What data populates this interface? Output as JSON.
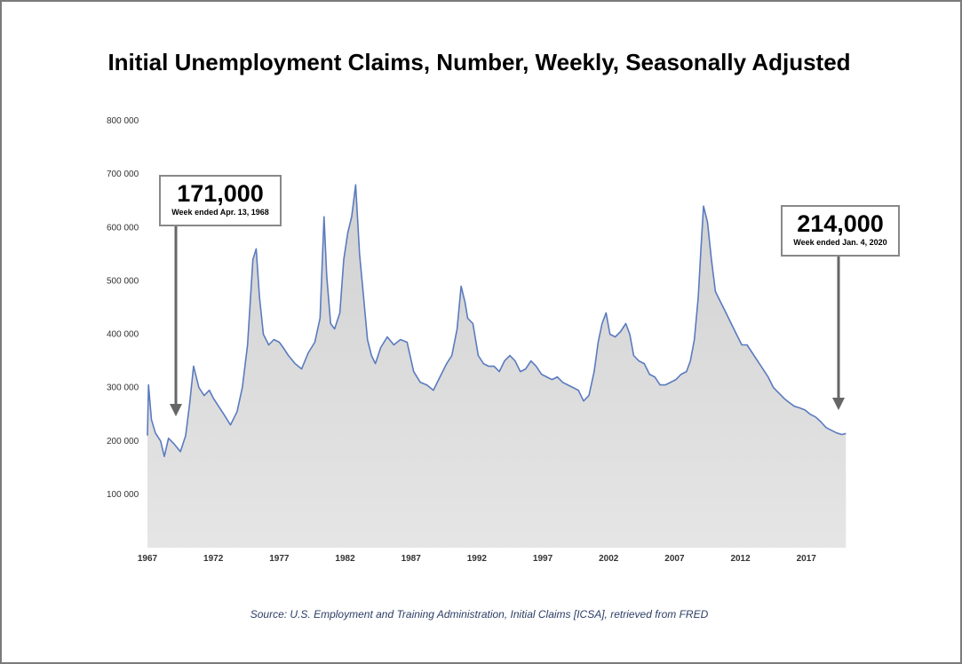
{
  "title": "Initial Unemployment Claims, Number, Weekly, Seasonally Adjusted",
  "source": "Source: U.S. Employment and Training Administration, Initial Claims [ICSA], retrieved from FRED",
  "callouts": [
    {
      "value": "171,000",
      "label": "Week ended Apr. 13, 1968"
    },
    {
      "value": "214,000",
      "label": "Week ended Jan. 4, 2020"
    }
  ],
  "colors": {
    "line": "#5a7bbf",
    "fill": "#d4d4d4",
    "border": "#7a7a7a",
    "arrow": "#666666"
  },
  "chart_data": {
    "type": "area",
    "title": "Initial Unemployment Claims, Number, Weekly, Seasonally Adjusted",
    "xlabel": "",
    "ylabel": "",
    "xlim": [
      1967.0,
      2020.05
    ],
    "ylim": [
      0,
      800000
    ],
    "yticks": [
      100000,
      200000,
      300000,
      400000,
      500000,
      600000,
      700000,
      800000
    ],
    "ytick_labels": [
      "100 000",
      "200 000",
      "300 000",
      "400 000",
      "500 000",
      "600 000",
      "700 000",
      "800 000"
    ],
    "xticks": [
      1967,
      1972,
      1977,
      1982,
      1987,
      1992,
      1997,
      2002,
      2007,
      2012,
      2017
    ],
    "xtick_labels": [
      "1967",
      "1972",
      "1977",
      "1982",
      "1987",
      "1992",
      "1997",
      "2002",
      "2007",
      "2012",
      "2017"
    ],
    "grid": false,
    "series": [
      {
        "x": [
          1967.0,
          1967.08,
          1967.3,
          1967.6,
          1968.0,
          1968.28,
          1968.6,
          1969.0,
          1969.5,
          1969.9,
          1970.2,
          1970.5,
          1970.9,
          1971.3,
          1971.7,
          1972.0,
          1972.4,
          1972.8,
          1973.3,
          1973.8,
          1974.2,
          1974.6,
          1975.0,
          1975.25,
          1975.5,
          1975.8,
          1976.2,
          1976.6,
          1977.0,
          1977.3,
          1977.7,
          1978.2,
          1978.7,
          1979.2,
          1979.7,
          1980.1,
          1980.4,
          1980.6,
          1980.9,
          1981.2,
          1981.6,
          1981.9,
          1982.2,
          1982.5,
          1982.8,
          1983.1,
          1983.4,
          1983.7,
          1984.0,
          1984.3,
          1984.7,
          1985.2,
          1985.7,
          1986.2,
          1986.7,
          1987.2,
          1987.7,
          1988.2,
          1988.7,
          1989.2,
          1989.7,
          1990.1,
          1990.5,
          1990.8,
          1991.1,
          1991.3,
          1991.7,
          1992.1,
          1992.5,
          1992.9,
          1993.3,
          1993.7,
          1994.1,
          1994.5,
          1994.9,
          1995.3,
          1995.7,
          1996.1,
          1996.5,
          1996.9,
          1997.3,
          1997.7,
          1998.1,
          1998.5,
          1998.9,
          1999.3,
          1999.7,
          2000.1,
          2000.5,
          2000.9,
          2001.2,
          2001.5,
          2001.8,
          2002.1,
          2002.5,
          2002.9,
          2003.3,
          2003.6,
          2003.9,
          2004.3,
          2004.7,
          2005.1,
          2005.5,
          2005.9,
          2006.3,
          2006.7,
          2007.1,
          2007.5,
          2007.9,
          2008.2,
          2008.5,
          2008.8,
          2009.0,
          2009.2,
          2009.5,
          2009.8,
          2010.1,
          2010.5,
          2010.9,
          2011.3,
          2011.7,
          2012.1,
          2012.5,
          2012.9,
          2013.3,
          2013.7,
          2014.1,
          2014.5,
          2014.9,
          2015.3,
          2015.7,
          2016.1,
          2016.5,
          2016.9,
          2017.3,
          2017.7,
          2018.1,
          2018.5,
          2018.9,
          2019.3,
          2019.7,
          2020.0
        ],
        "values": [
          210000,
          305000,
          240000,
          215000,
          200000,
          171000,
          205000,
          195000,
          180000,
          210000,
          270000,
          340000,
          300000,
          285000,
          295000,
          280000,
          265000,
          250000,
          230000,
          255000,
          300000,
          380000,
          540000,
          560000,
          470000,
          400000,
          380000,
          390000,
          385000,
          375000,
          360000,
          345000,
          335000,
          365000,
          385000,
          430000,
          620000,
          510000,
          420000,
          410000,
          440000,
          540000,
          590000,
          620000,
          680000,
          550000,
          470000,
          390000,
          360000,
          345000,
          375000,
          395000,
          380000,
          390000,
          385000,
          330000,
          310000,
          305000,
          295000,
          320000,
          345000,
          360000,
          410000,
          490000,
          460000,
          430000,
          420000,
          360000,
          345000,
          340000,
          340000,
          330000,
          350000,
          360000,
          350000,
          330000,
          335000,
          350000,
          340000,
          325000,
          320000,
          315000,
          320000,
          310000,
          305000,
          300000,
          295000,
          275000,
          285000,
          330000,
          385000,
          420000,
          440000,
          400000,
          395000,
          405000,
          420000,
          400000,
          360000,
          350000,
          345000,
          325000,
          320000,
          305000,
          305000,
          310000,
          315000,
          325000,
          330000,
          350000,
          390000,
          470000,
          560000,
          640000,
          610000,
          540000,
          480000,
          460000,
          440000,
          420000,
          400000,
          380000,
          380000,
          365000,
          350000,
          335000,
          320000,
          300000,
          290000,
          280000,
          272000,
          265000,
          262000,
          258000,
          250000,
          245000,
          236000,
          225000,
          220000,
          215000,
          212000,
          214000
        ]
      }
    ],
    "annotations": [
      {
        "text": "171,000",
        "subtext": "Week ended Apr. 13, 1968",
        "x": 1968.28,
        "y": 171000
      },
      {
        "text": "214,000",
        "subtext": "Week ended Jan. 4, 2020",
        "x": 2020.0,
        "y": 214000
      }
    ],
    "source": "Source: U.S. Employment and Training Administration, Initial Claims [ICSA], retrieved from FRED"
  }
}
